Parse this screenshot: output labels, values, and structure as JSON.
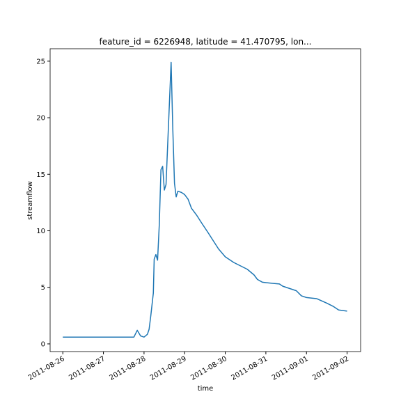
{
  "chart_data": {
    "type": "line",
    "title": "feature_id = 6226948, latitude = 41.470795, lon...",
    "xlabel": "time",
    "ylabel": "streamflow",
    "x": [
      "2011-08-26T00:00",
      "2011-08-27T00:00",
      "2011-08-27T18:00",
      "2011-08-27T20:00",
      "2011-08-27T22:00",
      "2011-08-28T00:00",
      "2011-08-28T02:00",
      "2011-08-28T03:00",
      "2011-08-28T04:00",
      "2011-08-28T05:30",
      "2011-08-28T06:00",
      "2011-08-28T07:00",
      "2011-08-28T08:00",
      "2011-08-28T09:00",
      "2011-08-28T10:00",
      "2011-08-28T11:00",
      "2011-08-28T12:00",
      "2011-08-28T13:00",
      "2011-08-28T16:00",
      "2011-08-28T17:00",
      "2011-08-28T18:00",
      "2011-08-28T19:00",
      "2011-08-28T20:00",
      "2011-08-28T22:00",
      "2011-08-29T00:00",
      "2011-08-29T02:00",
      "2011-08-29T04:00",
      "2011-08-29T07:00",
      "2011-08-29T10:00",
      "2011-08-29T14:00",
      "2011-08-29T20:00",
      "2011-08-30T00:00",
      "2011-08-30T05:00",
      "2011-08-30T09:00",
      "2011-08-30T13:00",
      "2011-08-30T17:00",
      "2011-08-30T19:00",
      "2011-08-30T22:00",
      "2011-08-31T04:00",
      "2011-08-31T08:00",
      "2011-08-31T10:00",
      "2011-08-31T16:00",
      "2011-08-31T18:00",
      "2011-08-31T21:00",
      "2011-09-01T00:00",
      "2011-09-01T06:00",
      "2011-09-01T12:00",
      "2011-09-01T16:00",
      "2011-09-01T19:00",
      "2011-09-02T00:00"
    ],
    "series": [
      {
        "name": "streamflow",
        "color": "#1f77b4",
        "values": [
          0.6,
          0.6,
          0.6,
          1.2,
          0.7,
          0.6,
          0.85,
          1.3,
          2.5,
          4.5,
          7.5,
          7.9,
          7.4,
          10.5,
          15.4,
          15.7,
          13.6,
          14.1,
          24.9,
          19.0,
          14.2,
          13.0,
          13.5,
          13.4,
          13.2,
          12.8,
          12.0,
          11.4,
          10.7,
          9.8,
          8.4,
          7.7,
          7.2,
          6.9,
          6.6,
          6.1,
          5.7,
          5.45,
          5.35,
          5.3,
          5.1,
          4.8,
          4.7,
          4.25,
          4.1,
          4.0,
          3.6,
          3.3,
          3.0,
          2.9
        ]
      }
    ],
    "xlim": [
      "2011-08-25T16:30",
      "2011-09-02T08:00"
    ],
    "xticks": [
      "2011-08-26",
      "2011-08-27",
      "2011-08-28",
      "2011-08-29",
      "2011-08-30",
      "2011-08-31",
      "2011-09-01",
      "2011-09-02"
    ],
    "ylim": [
      -0.68,
      26.1
    ],
    "yticks": [
      0,
      5,
      10,
      15,
      20,
      25
    ],
    "grid": false
  }
}
